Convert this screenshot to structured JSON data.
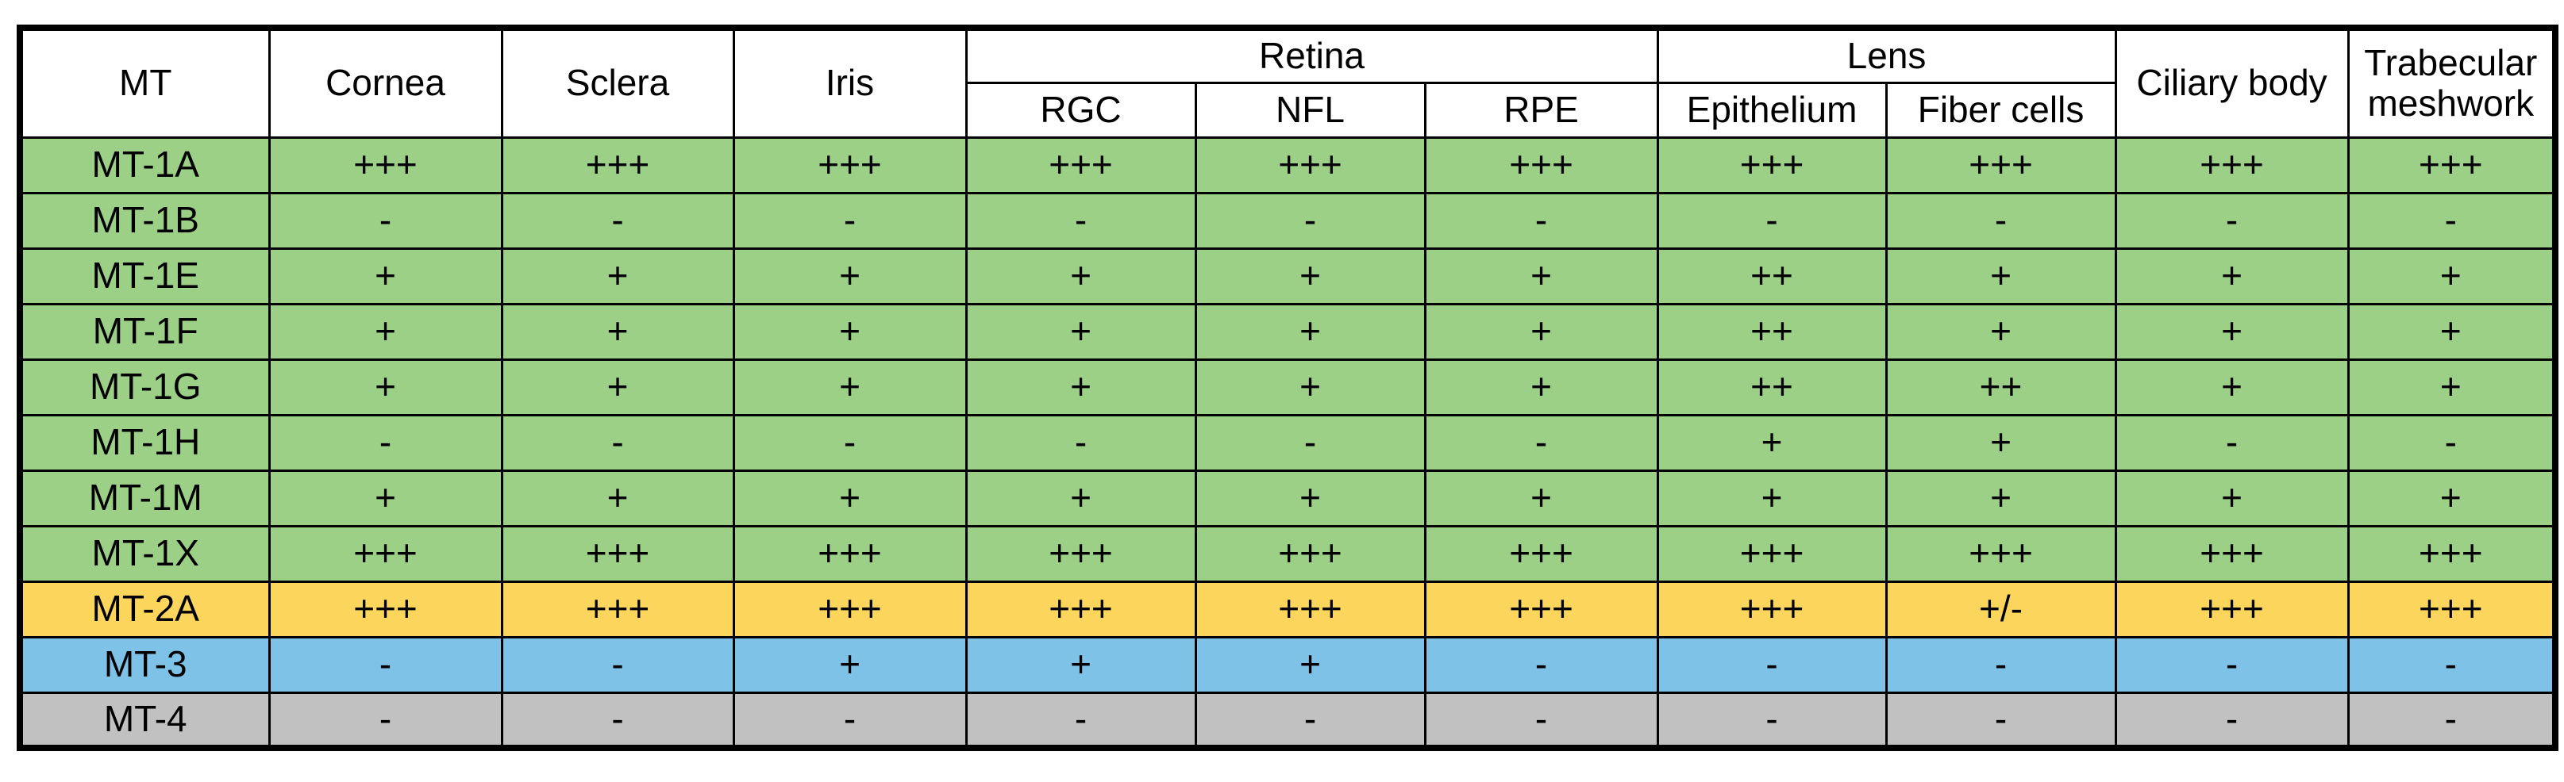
{
  "chart_data": {
    "type": "table",
    "column_groups": [
      {
        "label": "MT"
      },
      {
        "label": "Cornea"
      },
      {
        "label": "Sclera"
      },
      {
        "label": "Iris"
      },
      {
        "label": "Retina",
        "sub": [
          "RGC",
          "NFL",
          "RPE"
        ]
      },
      {
        "label": "Lens",
        "sub": [
          "Epithelium",
          "Fiber cells"
        ]
      },
      {
        "label": "Ciliary body"
      },
      {
        "label": "Trabecular meshwork"
      }
    ],
    "leaf_columns": [
      "MT",
      "Cornea",
      "Sclera",
      "Iris",
      "RGC",
      "NFL",
      "RPE",
      "Epithelium",
      "Fiber cells",
      "Ciliary body",
      "Trabecular meshwork"
    ],
    "row_colors": {
      "green": "#9BD086",
      "yellow": "#FBD55C",
      "blue": "#7FC2E8",
      "gray": "#C1C1C1"
    },
    "border_color": "#000000",
    "rows": [
      {
        "label": "MT-1A",
        "color": "green",
        "values": [
          "+++",
          "+++",
          "+++",
          "+++",
          "+++",
          "+++",
          "+++",
          "+++",
          "+++",
          "+++"
        ]
      },
      {
        "label": "MT-1B",
        "color": "green",
        "values": [
          "-",
          "-",
          "-",
          "-",
          "-",
          "-",
          "-",
          "-",
          "-",
          "-"
        ]
      },
      {
        "label": "MT-1E",
        "color": "green",
        "values": [
          "+",
          "+",
          "+",
          "+",
          "+",
          "+",
          "++",
          "+",
          "+",
          "+"
        ]
      },
      {
        "label": "MT-1F",
        "color": "green",
        "values": [
          "+",
          "+",
          "+",
          "+",
          "+",
          "+",
          "++",
          "+",
          "+",
          "+"
        ]
      },
      {
        "label": "MT-1G",
        "color": "green",
        "values": [
          "+",
          "+",
          "+",
          "+",
          "+",
          "+",
          "++",
          "++",
          "+",
          "+"
        ]
      },
      {
        "label": "MT-1H",
        "color": "green",
        "values": [
          "-",
          "-",
          "-",
          "-",
          "-",
          "-",
          "+",
          "+",
          "-",
          "-"
        ]
      },
      {
        "label": "MT-1M",
        "color": "green",
        "values": [
          "+",
          "+",
          "+",
          "+",
          "+",
          "+",
          "+",
          "+",
          "+",
          "+"
        ]
      },
      {
        "label": "MT-1X",
        "color": "green",
        "values": [
          "+++",
          "+++",
          "+++",
          "+++",
          "+++",
          "+++",
          "+++",
          "+++",
          "+++",
          "+++"
        ]
      },
      {
        "label": "MT-2A",
        "color": "yellow",
        "values": [
          "+++",
          "+++",
          "+++",
          "+++",
          "+++",
          "+++",
          "+++",
          "+/-",
          "+++",
          "+++"
        ]
      },
      {
        "label": "MT-3",
        "color": "blue",
        "values": [
          "-",
          "-",
          "+",
          "+",
          "+",
          "-",
          "-",
          "-",
          "-",
          "-"
        ]
      },
      {
        "label": "MT-4",
        "color": "gray",
        "values": [
          "-",
          "-",
          "-",
          "-",
          "-",
          "-",
          "-",
          "-",
          "-",
          "-"
        ]
      }
    ]
  }
}
